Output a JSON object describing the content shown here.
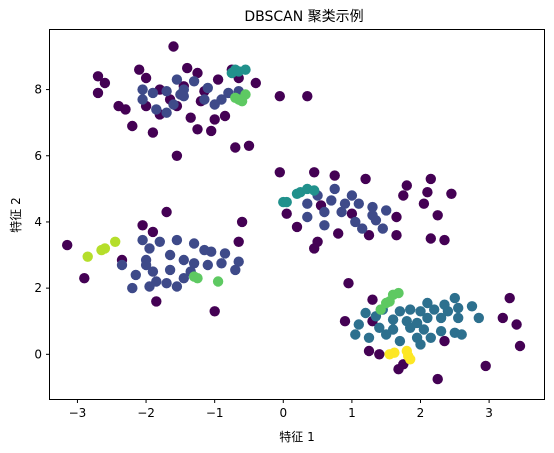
{
  "chart_data": {
    "type": "scatter",
    "title": "DBSCAN 聚类示例",
    "xlabel": "特征 1",
    "ylabel": "特征 2",
    "xlim": [
      -3.4,
      3.8
    ],
    "ylim": [
      -1.35,
      9.8
    ],
    "xticks": [
      -3,
      -2,
      -1,
      0,
      1,
      2,
      3
    ],
    "yticks": [
      0,
      2,
      4,
      6,
      8
    ],
    "grid": false,
    "legend": "none",
    "colormap": "viridis",
    "series": [
      {
        "color": "#440154",
        "points": [
          [
            -1.6,
            9.3
          ],
          [
            -2.7,
            8.4
          ],
          [
            -2.1,
            8.6
          ],
          [
            -2.6,
            8.2
          ],
          [
            -2.7,
            7.9
          ],
          [
            -2.0,
            8.35
          ],
          [
            -1.4,
            8.65
          ],
          [
            -1.25,
            8.5
          ],
          [
            -0.95,
            8.3
          ],
          [
            -0.75,
            8.6
          ],
          [
            -0.65,
            8.35
          ],
          [
            -0.4,
            8.2
          ],
          [
            -1.8,
            8.0
          ],
          [
            -1.45,
            8.1
          ],
          [
            -1.15,
            7.95
          ],
          [
            -1.65,
            7.7
          ],
          [
            -1.2,
            7.65
          ],
          [
            -2.4,
            7.5
          ],
          [
            -2.3,
            7.4
          ],
          [
            -2.0,
            7.5
          ],
          [
            -1.8,
            7.25
          ],
          [
            -1.55,
            7.5
          ],
          [
            -1.35,
            7.15
          ],
          [
            -1.0,
            7.1
          ],
          [
            -0.85,
            7.2
          ],
          [
            -2.2,
            6.9
          ],
          [
            -1.9,
            6.7
          ],
          [
            -1.25,
            6.8
          ],
          [
            -1.05,
            6.75
          ],
          [
            -1.55,
            6.0
          ],
          [
            -0.7,
            6.25
          ],
          [
            -0.5,
            6.3
          ],
          [
            -0.05,
            7.8
          ],
          [
            0.35,
            7.8
          ],
          [
            -0.05,
            5.5
          ],
          [
            0.45,
            5.5
          ],
          [
            0.75,
            5.4
          ],
          [
            1.2,
            5.3
          ],
          [
            1.8,
            5.1
          ],
          [
            2.15,
            5.3
          ],
          [
            2.1,
            4.9
          ],
          [
            1.75,
            4.8
          ],
          [
            2.45,
            4.85
          ],
          [
            2.05,
            4.55
          ],
          [
            0.05,
            4.25
          ],
          [
            0.55,
            4.5
          ],
          [
            1.0,
            4.25
          ],
          [
            1.65,
            4.15
          ],
          [
            2.25,
            4.2
          ],
          [
            0.2,
            3.85
          ],
          [
            0.8,
            3.65
          ],
          [
            0.5,
            3.4
          ],
          [
            0.45,
            3.2
          ],
          [
            1.25,
            3.6
          ],
          [
            1.65,
            3.6
          ],
          [
            2.15,
            3.5
          ],
          [
            2.35,
            3.45
          ],
          [
            -1.7,
            4.3
          ],
          [
            -0.6,
            4.0
          ],
          [
            -2.05,
            3.9
          ],
          [
            -1.9,
            3.7
          ],
          [
            -0.65,
            3.4
          ],
          [
            -3.15,
            3.3
          ],
          [
            -2.35,
            2.85
          ],
          [
            -2.9,
            2.3
          ],
          [
            -1.85,
            1.6
          ],
          [
            -1.0,
            1.3
          ],
          [
            0.95,
            2.15
          ],
          [
            1.3,
            1.65
          ],
          [
            0.9,
            1.0
          ],
          [
            1.3,
            1.0
          ],
          [
            3.3,
            1.7
          ],
          [
            3.2,
            1.1
          ],
          [
            3.4,
            0.9
          ],
          [
            1.25,
            0.1
          ],
          [
            1.4,
            0.0
          ],
          [
            3.45,
            0.25
          ],
          [
            2.35,
            0.4
          ],
          [
            2.95,
            -0.35
          ],
          [
            1.75,
            -0.3
          ],
          [
            1.68,
            -0.45
          ],
          [
            2.25,
            -0.75
          ]
        ]
      },
      {
        "color": "#3e4a89",
        "points": [
          [
            -1.55,
            8.3
          ],
          [
            -1.45,
            8.0
          ],
          [
            -1.3,
            8.25
          ],
          [
            -1.7,
            7.95
          ],
          [
            -1.9,
            7.9
          ],
          [
            -2.05,
            8.0
          ],
          [
            -1.6,
            7.55
          ],
          [
            -1.45,
            7.8
          ],
          [
            -1.15,
            7.7
          ],
          [
            -1.0,
            7.55
          ],
          [
            -1.85,
            7.4
          ],
          [
            -2.05,
            7.7
          ],
          [
            -1.1,
            8.05
          ],
          [
            -0.8,
            7.9
          ],
          [
            -0.65,
            7.95
          ],
          [
            -1.7,
            7.3
          ],
          [
            -0.9,
            7.7
          ],
          [
            -1.5,
            7.85
          ],
          [
            0.5,
            4.8
          ],
          [
            0.7,
            4.65
          ],
          [
            0.9,
            4.55
          ],
          [
            1.1,
            4.55
          ],
          [
            1.3,
            4.45
          ],
          [
            1.5,
            4.35
          ],
          [
            0.6,
            4.3
          ],
          [
            0.85,
            4.3
          ],
          [
            0.35,
            4.15
          ],
          [
            1.35,
            4.05
          ],
          [
            1.05,
            4.0
          ],
          [
            0.6,
            3.9
          ],
          [
            1.45,
            3.8
          ],
          [
            0.35,
            4.55
          ],
          [
            1.0,
            4.8
          ],
          [
            0.75,
            5.0
          ],
          [
            1.3,
            4.2
          ],
          [
            1.15,
            3.8
          ],
          [
            -2.05,
            3.45
          ],
          [
            -1.8,
            3.4
          ],
          [
            -1.55,
            3.45
          ],
          [
            -1.3,
            3.35
          ],
          [
            -1.15,
            3.15
          ],
          [
            -1.05,
            3.1
          ],
          [
            -0.85,
            3.05
          ],
          [
            -1.95,
            3.2
          ],
          [
            -1.65,
            3.0
          ],
          [
            -1.45,
            2.85
          ],
          [
            -2.0,
            2.85
          ],
          [
            -1.3,
            2.75
          ],
          [
            -1.1,
            2.7
          ],
          [
            -0.9,
            2.75
          ],
          [
            -2.15,
            2.4
          ],
          [
            -1.9,
            2.5
          ],
          [
            -1.65,
            2.55
          ],
          [
            -1.45,
            2.3
          ],
          [
            -1.7,
            2.15
          ],
          [
            -2.2,
            2.0
          ],
          [
            -1.95,
            2.05
          ],
          [
            -1.85,
            2.2
          ],
          [
            -1.55,
            2.05
          ],
          [
            -0.7,
            2.55
          ],
          [
            -0.65,
            2.8
          ],
          [
            -1.35,
            2.5
          ],
          [
            -2.35,
            2.7
          ],
          [
            -2.0,
            2.7
          ]
        ]
      },
      {
        "color": "#2d708e",
        "points": [
          [
            1.45,
            1.35
          ],
          [
            1.7,
            1.3
          ],
          [
            1.85,
            1.35
          ],
          [
            2.0,
            1.3
          ],
          [
            2.2,
            1.35
          ],
          [
            2.4,
            1.3
          ],
          [
            2.55,
            1.4
          ],
          [
            2.75,
            1.45
          ],
          [
            2.1,
            1.1
          ],
          [
            2.3,
            1.1
          ],
          [
            1.6,
            1.05
          ],
          [
            1.8,
            1.0
          ],
          [
            1.95,
            0.95
          ],
          [
            1.35,
            1.15
          ],
          [
            1.2,
            1.25
          ],
          [
            2.55,
            1.1
          ],
          [
            2.85,
            1.1
          ],
          [
            1.1,
            0.9
          ],
          [
            1.4,
            0.8
          ],
          [
            1.6,
            0.75
          ],
          [
            1.85,
            0.8
          ],
          [
            2.05,
            0.75
          ],
          [
            2.3,
            0.7
          ],
          [
            2.5,
            0.65
          ],
          [
            1.25,
            0.5
          ],
          [
            1.5,
            0.6
          ],
          [
            1.95,
            0.5
          ],
          [
            2.15,
            0.5
          ],
          [
            2.6,
            0.6
          ],
          [
            1.05,
            0.6
          ],
          [
            1.7,
            0.4
          ],
          [
            2.0,
            0.3
          ],
          [
            2.5,
            1.7
          ],
          [
            2.35,
            1.5
          ],
          [
            2.1,
            1.55
          ]
        ]
      },
      {
        "color": "#21918c",
        "points": [
          [
            -0.7,
            8.6
          ],
          [
            -0.65,
            8.55
          ],
          [
            -0.75,
            8.5
          ],
          [
            -0.55,
            8.6
          ],
          [
            0.0,
            4.6
          ],
          [
            0.05,
            4.6
          ],
          [
            0.2,
            4.85
          ],
          [
            0.25,
            4.9
          ],
          [
            0.35,
            5.0
          ],
          [
            0.45,
            4.95
          ]
        ]
      },
      {
        "color": "#5ec962",
        "points": [
          [
            -0.7,
            7.75
          ],
          [
            -0.55,
            7.85
          ],
          [
            -0.65,
            7.7
          ],
          [
            -0.6,
            7.65
          ],
          [
            1.42,
            1.35
          ],
          [
            1.5,
            1.55
          ],
          [
            1.55,
            1.6
          ],
          [
            1.6,
            1.8
          ],
          [
            1.68,
            1.85
          ],
          [
            -0.95,
            2.2
          ],
          [
            -1.3,
            2.35
          ],
          [
            -1.25,
            2.3
          ]
        ]
      },
      {
        "color": "#b5de2b",
        "points": [
          [
            -2.85,
            2.95
          ],
          [
            -2.65,
            3.15
          ],
          [
            -2.6,
            3.2
          ],
          [
            -2.45,
            3.4
          ]
        ]
      },
      {
        "color": "#fde725",
        "points": [
          [
            1.55,
            0.0
          ],
          [
            1.62,
            0.05
          ],
          [
            1.8,
            0.1
          ],
          [
            1.82,
            -0.05
          ],
          [
            1.85,
            -0.15
          ]
        ]
      }
    ]
  }
}
